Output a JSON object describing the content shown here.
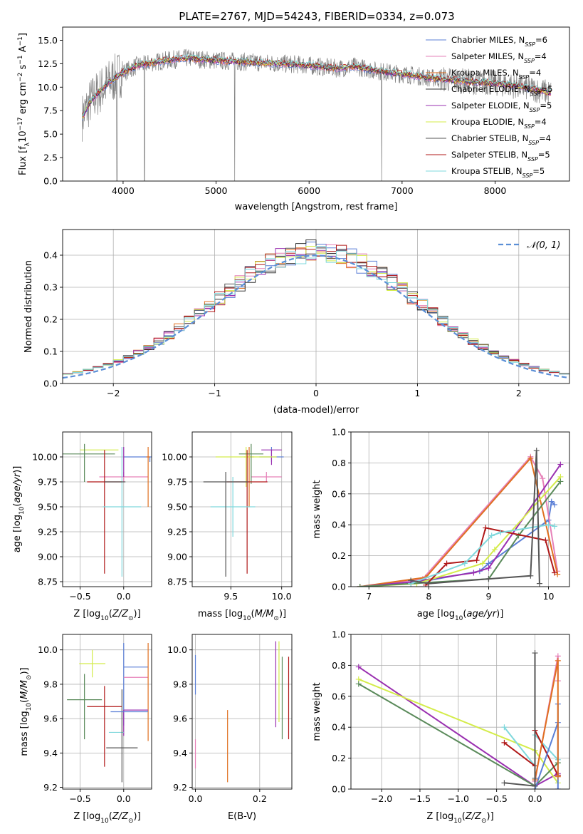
{
  "figure_title": "PLATE=2767, MJD=54243, FIBERID=0334, z=0.073",
  "legend": [
    {
      "pre": "Chabrier MILES, N",
      "sub": "SSP",
      "post": "=6",
      "color": "#5b7fd6"
    },
    {
      "pre": "Salpeter MILES, N",
      "sub": "SSP",
      "post": "=4",
      "color": "#e680b8"
    },
    {
      "pre": "Kroupa MILES, N",
      "sub": "SSP",
      "post": "=4",
      "color": "#e07020"
    },
    {
      "pre": "Chabrier ELODIE, N",
      "sub": "SSP",
      "post": "=5",
      "color": "#333333"
    },
    {
      "pre": "Salpeter ELODIE, N",
      "sub": "SSP",
      "post": "=5",
      "color": "#9a30b0"
    },
    {
      "pre": "Kroupa ELODIE, N",
      "sub": "SSP",
      "post": "=4",
      "color": "#d4ec4a"
    },
    {
      "pre": "Chabrier STELIB, N",
      "sub": "SSP",
      "post": "=4",
      "color": "#555555"
    },
    {
      "pre": "Salpeter STELIB, N",
      "sub": "SSP",
      "post": "=5",
      "color": "#b01818"
    },
    {
      "pre": "Kroupa STELIB, N",
      "sub": "SSP",
      "post": "=5",
      "color": "#7fd8dc"
    }
  ],
  "colors": {
    "data": "#808080",
    "green": "#5a8a5a",
    "normal": "#5b8fd6"
  },
  "chart_data": [
    {
      "id": "spectrum",
      "type": "line",
      "xlabel": "wavelength [Angstrom, rest frame]",
      "ylabel": "Flux [f_λ 10^-17 erg cm^-2 s^-1 A^-1]",
      "xlim": [
        3350,
        8800
      ],
      "ylim": [
        0,
        16.4
      ],
      "xticks": [
        4000,
        5000,
        6000,
        7000,
        8000
      ],
      "yticks": [
        0.0,
        2.5,
        5.0,
        7.5,
        10.0,
        12.5,
        15.0
      ],
      "series": [
        {
          "style": "data",
          "x": [
            3560,
            3650,
            3750,
            3850,
            3950,
            4050,
            4150,
            4300,
            4500,
            4700,
            4900,
            5100,
            5300,
            5500,
            5700,
            5900,
            6100,
            6300,
            6500,
            6700,
            6900,
            7100,
            7300,
            7500,
            7700,
            7900,
            8100,
            8300,
            8500,
            8600
          ],
          "y": [
            6.8,
            8.5,
            9.6,
            10.5,
            11.3,
            11.8,
            12.3,
            12.6,
            12.9,
            13.1,
            12.9,
            12.8,
            12.7,
            12.6,
            12.5,
            12.4,
            12.2,
            12.0,
            12.2,
            11.8,
            11.5,
            11.3,
            11.0,
            10.8,
            10.6,
            10.5,
            10.3,
            10.0,
            9.6,
            9.4
          ]
        }
      ]
    },
    {
      "id": "residuals",
      "type": "histogram",
      "xlabel": "(data-model)/error",
      "ylabel": "Normed distribution",
      "xlim": [
        -2.5,
        2.5
      ],
      "ylim": [
        0,
        0.48
      ],
      "xticks": [
        -2,
        -1,
        0,
        1,
        2
      ],
      "yticks": [
        0.0,
        0.1,
        0.2,
        0.3,
        0.4
      ],
      "legend": "N(0,1)"
    },
    {
      "id": "age_vs_Z",
      "type": "errorbar",
      "xlabel": "Z [log10(Z/Z_sun)]",
      "ylabel": "age [log10(age/yr)]",
      "xlim": [
        -0.7,
        0.32
      ],
      "ylim": [
        8.7,
        10.25
      ],
      "xticks": [
        -0.5,
        0.0
      ],
      "yticks": [
        8.75,
        9.0,
        9.25,
        9.5,
        9.75,
        10.0
      ],
      "points": [
        {
          "x": 0.3,
          "y": 10.0,
          "xerr": 0.3,
          "yerr": [
            0.05,
            0.0
          ]
        },
        {
          "x": 0.0,
          "y": 9.8,
          "xerr": 0.28,
          "yerr": [
            0.05,
            0.05
          ]
        },
        {
          "x": 0.28,
          "y": 10.0,
          "xerr": 0.02,
          "yerr": [
            0.5,
            0.1
          ]
        },
        {
          "x": 0.0,
          "y": 10.1,
          "xerr": 0.0,
          "yerr": [
            0.3,
            0.0
          ]
        },
        {
          "x": -0.28,
          "y": 10.07,
          "xerr": 0.22,
          "yerr": [
            0.0,
            0.0
          ]
        },
        {
          "x": -0.45,
          "y": 10.03,
          "xerr": 0.35,
          "yerr": [
            0.28,
            0.1
          ]
        },
        {
          "x": -0.22,
          "y": 9.75,
          "xerr": 0.2,
          "yerr": [
            0.92,
            0.32
          ]
        },
        {
          "x": -0.02,
          "y": 9.5,
          "xerr": 0.22,
          "yerr": [
            0.7,
            0.6
          ]
        },
        {
          "x": -0.1,
          "y": 9.75,
          "xerr": 0.12,
          "yerr": [
            0.0,
            0.0
          ]
        }
      ]
    },
    {
      "id": "age_vs_mass",
      "type": "errorbar",
      "xlabel": "mass [log10(M/M_sun)]",
      "ylabel": "",
      "xlim": [
        9.12,
        10.1
      ],
      "ylim": [
        8.7,
        10.25
      ],
      "xticks": [
        9.5,
        10.0
      ],
      "yticks": [
        8.75,
        9.0,
        9.25,
        9.5,
        9.75,
        10.0
      ],
      "points": [
        {
          "x": 9.9,
          "y": 10.0,
          "xerr": 0.12,
          "yerr": [
            0.05,
            0.1
          ]
        },
        {
          "x": 9.85,
          "y": 9.8,
          "xerr": 0.15,
          "yerr": [
            0.05,
            0.05
          ]
        },
        {
          "x": 9.68,
          "y": 10.0,
          "xerr": 0.05,
          "yerr": [
            0.5,
            0.1
          ]
        },
        {
          "x": 9.9,
          "y": 10.07,
          "xerr": 0.1,
          "yerr": [
            0.15,
            0.0
          ]
        },
        {
          "x": 9.65,
          "y": 10.0,
          "xerr": 0.3,
          "yerr": [
            0.3,
            0.1
          ]
        },
        {
          "x": 9.7,
          "y": 10.03,
          "xerr": 0.12,
          "yerr": [
            0.3,
            0.1
          ]
        },
        {
          "x": 9.66,
          "y": 9.75,
          "xerr": 0.2,
          "yerr": [
            0.92,
            0.32
          ]
        },
        {
          "x": 9.52,
          "y": 9.5,
          "xerr": 0.22,
          "yerr": [
            0.3,
            0.3
          ]
        },
        {
          "x": 9.45,
          "y": 9.75,
          "xerr": 0.22,
          "yerr": [
            0.95,
            0.1
          ]
        }
      ]
    },
    {
      "id": "massweight_vs_age",
      "type": "line",
      "xlabel": "age [log10(age/yr)]",
      "ylabel": "mass weight",
      "xlim": [
        6.7,
        10.35
      ],
      "ylim": [
        0,
        1.0
      ],
      "xticks": [
        7,
        8,
        9,
        10
      ],
      "yticks": [
        0.0,
        0.2,
        0.4,
        0.6,
        0.8,
        1.0
      ],
      "series": [
        {
          "color": "#5b7fd6",
          "x": [
            6.85,
            7.7,
            8.85,
            9.0,
            10.0,
            10.05,
            10.1
          ],
          "y": [
            0.0,
            0.02,
            0.1,
            0.15,
            0.43,
            0.55,
            0.53
          ]
        },
        {
          "color": "#e680b8",
          "x": [
            6.85,
            7.9,
            9.7,
            9.9,
            10.15
          ],
          "y": [
            0.0,
            0.05,
            0.84,
            0.7,
            0.1
          ]
        },
        {
          "color": "#e07020",
          "x": [
            6.85,
            7.95,
            9.7,
            10.15
          ],
          "y": [
            0.0,
            0.06,
            0.83,
            0.08
          ]
        },
        {
          "color": "#9a30b0",
          "x": [
            6.85,
            7.7,
            8.75,
            9.0,
            10.2
          ],
          "y": [
            0.0,
            0.03,
            0.09,
            0.12,
            0.79
          ]
        },
        {
          "color": "#d4ec4a",
          "x": [
            6.85,
            7.8,
            8.9,
            9.1,
            10.2
          ],
          "y": [
            0.0,
            0.02,
            0.15,
            0.24,
            0.71
          ]
        },
        {
          "color": "#5a8a5a",
          "x": [
            6.85,
            7.7,
            9.0,
            9.5,
            10.2
          ],
          "y": [
            0.0,
            0.02,
            0.05,
            0.33,
            0.68
          ]
        },
        {
          "color": "#b01818",
          "x": [
            7.95,
            8.3,
            8.8,
            8.95,
            9.95,
            10.1
          ],
          "y": [
            0.01,
            0.15,
            0.17,
            0.38,
            0.3,
            0.09
          ]
        },
        {
          "color": "#7fd8dc",
          "x": [
            7.7,
            8.6,
            9.05,
            9.2,
            10.0,
            10.1
          ],
          "y": [
            0.02,
            0.15,
            0.33,
            0.35,
            0.4,
            0.39
          ]
        },
        {
          "color": "#555555",
          "x": [
            7.7,
            8.0,
            9.0,
            9.7,
            9.8,
            9.85
          ],
          "y": [
            0.04,
            0.02,
            0.05,
            0.07,
            0.88,
            0.02
          ]
        }
      ]
    },
    {
      "id": "mass_vs_Z",
      "type": "errorbar",
      "xlabel": "Z [log10(Z/Z_sun)]",
      "ylabel": "mass [log10(M/M_sun)]",
      "xlim": [
        -0.7,
        0.32
      ],
      "ylim": [
        9.19,
        10.09
      ],
      "xticks": [
        -0.5,
        0.0
      ],
      "yticks": [
        9.2,
        9.4,
        9.6,
        9.8,
        10.0
      ],
      "points": [
        {
          "x": 0.0,
          "y": 9.9,
          "xerr": [
            0.0,
            0.28
          ],
          "yerr": [
            0.34,
            0.14
          ]
        },
        {
          "x": 0.0,
          "y": 9.84,
          "xerr": [
            0.0,
            0.28
          ],
          "yerr": [
            0.0,
            0.0
          ]
        },
        {
          "x": 0.28,
          "y": 9.7,
          "xerr": [
            0.0,
            0.0
          ],
          "yerr": [
            0.23,
            0.34
          ]
        },
        {
          "x": 0.0,
          "y": 9.65,
          "xerr": [
            0.0,
            0.28
          ],
          "yerr": [
            0.15,
            0.0
          ]
        },
        {
          "x": -0.36,
          "y": 9.92,
          "xerr": [
            0.15,
            0.15
          ],
          "yerr": [
            0.08,
            0.08
          ]
        },
        {
          "x": -0.45,
          "y": 9.71,
          "xerr": [
            0.2,
            0.2
          ],
          "yerr": [
            0.23,
            0.15
          ]
        },
        {
          "x": -0.22,
          "y": 9.67,
          "xerr": [
            0.2,
            0.2
          ],
          "yerr": [
            0.35,
            0.12
          ]
        },
        {
          "x": 0.0,
          "y": 9.52,
          "xerr": [
            0.17,
            0.0
          ],
          "yerr": [
            0.0,
            0.0
          ]
        },
        {
          "x": -0.02,
          "y": 9.43,
          "xerr": [
            0.18,
            0.18
          ],
          "yerr": [
            0.2,
            0.34
          ]
        },
        {
          "x": 0.0,
          "y": 9.64,
          "xerr": [
            0.15,
            0.28
          ],
          "yerr": [
            0.0,
            0.0
          ]
        }
      ]
    },
    {
      "id": "mass_vs_EBV",
      "type": "errorbar",
      "xlabel": "E(B-V)",
      "ylabel": "",
      "xlim": [
        -0.01,
        0.3
      ],
      "ylim": [
        9.19,
        10.09
      ],
      "xticks": [
        0.0,
        0.2
      ],
      "yticks": [
        9.2,
        9.4,
        9.6,
        9.8,
        10.0
      ],
      "points": [
        {
          "x": 0.0,
          "y": 9.85,
          "xerr": 0.0,
          "yerr": [
            0.11,
            0.12
          ]
        },
        {
          "x": 0.0,
          "y": 9.43,
          "xerr": 0.0,
          "yerr": [
            0.12,
            0.05
          ]
        },
        {
          "x": 0.1,
          "y": 9.43,
          "xerr": 0.0,
          "yerr": [
            0.2,
            0.22
          ]
        },
        {
          "x": 0.25,
          "y": 9.8,
          "xerr": 0.0,
          "yerr": [
            0.25,
            0.25
          ]
        },
        {
          "x": 0.26,
          "y": 9.8,
          "xerr": 0.0,
          "yerr": [
            0.22,
            0.25
          ]
        },
        {
          "x": 0.27,
          "y": 9.72,
          "xerr": 0.0,
          "yerr": [
            0.24,
            0.24
          ]
        },
        {
          "x": 0.29,
          "y": 9.72,
          "xerr": 0.0,
          "yerr": [
            0.24,
            0.24
          ]
        }
      ]
    },
    {
      "id": "massweight_vs_Z",
      "type": "line",
      "xlabel": "Z [log10(Z/Z_sun)]",
      "ylabel": "mass weight",
      "xlim": [
        -2.4,
        0.45
      ],
      "ylim": [
        0,
        1.0
      ],
      "xticks": [
        -2.0,
        -1.5,
        -1.0,
        -0.5,
        0.0
      ],
      "yticks": [
        0.0,
        0.2,
        0.4,
        0.6,
        0.8,
        1.0
      ],
      "series": [
        {
          "color": "#9a30b0",
          "x": [
            -2.3,
            0.0,
            0.3,
            0.3
          ],
          "y": [
            0.79,
            0.02,
            0.1,
            0.09
          ]
        },
        {
          "color": "#d4ec4a",
          "x": [
            -2.3,
            0.0,
            0.3
          ],
          "y": [
            0.71,
            0.25,
            0.04
          ]
        },
        {
          "color": "#5a8a5a",
          "x": [
            -2.3,
            0.0,
            0.3
          ],
          "y": [
            0.68,
            0.02,
            0.17
          ]
        },
        {
          "color": "#7fd8dc",
          "x": [
            -0.4,
            0.0,
            0.0,
            0.3
          ],
          "y": [
            0.4,
            0.15,
            0.35,
            0.19
          ]
        },
        {
          "color": "#b01818",
          "x": [
            -0.4,
            0.0,
            0.0,
            0.3
          ],
          "y": [
            0.3,
            0.15,
            0.38,
            0.09
          ]
        },
        {
          "color": "#5b7fd6",
          "x": [
            0.0,
            0.3,
            0.3,
            0.3
          ],
          "y": [
            0.0,
            0.43,
            0.55,
            0.0
          ]
        },
        {
          "color": "#e680b8",
          "x": [
            0.0,
            0.3,
            0.3
          ],
          "y": [
            0.05,
            0.86,
            0.7
          ]
        },
        {
          "color": "#e07020",
          "x": [
            0.0,
            0.3,
            0.3
          ],
          "y": [
            0.06,
            0.83,
            0.08
          ]
        },
        {
          "color": "#555555",
          "x": [
            -0.4,
            0.0,
            0.0,
            0.0
          ],
          "y": [
            0.04,
            0.02,
            0.88,
            0.07
          ]
        }
      ]
    }
  ]
}
